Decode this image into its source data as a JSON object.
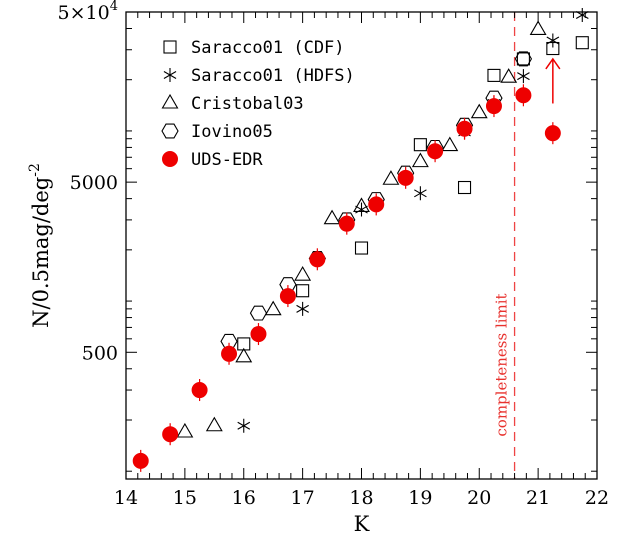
{
  "chart_data": {
    "type": "scatter",
    "xlabel": "K",
    "ylabel": "N/0.5mag/deg",
    "ylabel_sup": "-2",
    "xlim": [
      14,
      22
    ],
    "ylim": [
      90,
      50000
    ],
    "yscale": "log",
    "x_ticks": [
      "14",
      "15",
      "16",
      "17",
      "18",
      "19",
      "20",
      "21",
      "22"
    ],
    "y_ticks": [
      {
        "value": 500,
        "label": "500"
      },
      {
        "value": 5000,
        "label": "5000"
      },
      {
        "value": 50000,
        "label": "5×10",
        "sup": "4"
      }
    ],
    "legend_position": "top-left",
    "series": [
      {
        "name": "Saracco01 (CDF)",
        "marker": "square",
        "color": "#000000",
        "x": [
          16.0,
          17.0,
          18.0,
          19.0,
          19.75,
          20.25,
          20.75,
          21.25,
          21.75
        ],
        "y": [
          560,
          1150,
          2050,
          8300,
          4650,
          21200,
          26500,
          30500,
          33000
        ]
      },
      {
        "name": "Saracco01 (HDFS)",
        "marker": "asterisk",
        "color": "#000000",
        "x": [
          16.0,
          17.0,
          18.0,
          19.0,
          19.75,
          20.25,
          20.75,
          21.25,
          21.75
        ],
        "y": [
          185,
          900,
          3450,
          4300,
          9800,
          14600,
          21000,
          34000,
          48000
        ]
      },
      {
        "name": "Cristobal03",
        "marker": "triangle",
        "color": "#000000",
        "x": [
          15.0,
          15.5,
          16.0,
          16.5,
          17.0,
          17.5,
          18.0,
          18.5,
          19.0,
          19.5,
          20.0,
          20.5,
          21.0
        ],
        "y": [
          170,
          185,
          470,
          890,
          1420,
          3050,
          3600,
          5200,
          6600,
          8200,
          12800,
          20700,
          39500
        ]
      },
      {
        "name": "Iovino05",
        "marker": "hexagon",
        "color": "#000000",
        "x": [
          15.75,
          16.25,
          16.75,
          17.25,
          17.75,
          18.25,
          18.75,
          19.25,
          19.75,
          20.25,
          20.75
        ],
        "y": [
          580,
          850,
          1250,
          1780,
          3000,
          3950,
          5650,
          8000,
          10800,
          15600,
          26500
        ]
      },
      {
        "name": "UDS-EDR",
        "marker": "filled-circle",
        "color": "#ee0000",
        "x": [
          14.25,
          14.75,
          15.25,
          15.75,
          16.25,
          16.75,
          17.25,
          17.75,
          18.25,
          18.75,
          19.25,
          19.75,
          20.25,
          20.75,
          21.25
        ],
        "y": [
          115,
          165,
          300,
          490,
          640,
          1070,
          1760,
          2850,
          3700,
          5300,
          7600,
          10300,
          14000,
          16200,
          9700
        ]
      }
    ],
    "annotations": [
      {
        "type": "vline",
        "x": 20.6,
        "style": "dashed",
        "color": "#ee4444",
        "label": "completeness limit"
      },
      {
        "type": "up-arrow",
        "x": 21.25,
        "y_from": 14500,
        "y_to": 26500,
        "color": "#ee0000"
      }
    ]
  }
}
